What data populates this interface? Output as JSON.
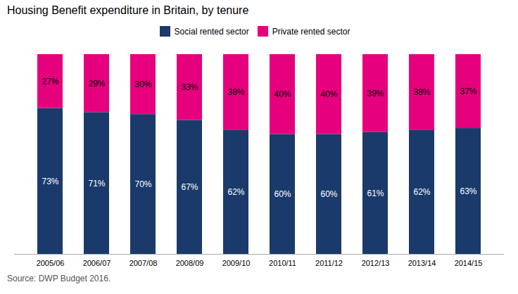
{
  "chart_data": {
    "type": "bar",
    "title": "Housing Benefit expenditure in Britain, by tenure",
    "caption": "Source: DWP Budget 2016.",
    "categories": [
      "2005/06",
      "2006/07",
      "2007/08",
      "2008/09",
      "2009/10",
      "2010/11",
      "2011/12",
      "2012/13",
      "2013/14",
      "2014/15"
    ],
    "series": [
      {
        "name": "Social rented sector",
        "color": "#1a3a6b",
        "values": [
          73,
          71,
          70,
          67,
          62,
          60,
          60,
          61,
          62,
          63
        ],
        "value_labels": [
          "73%",
          "71%",
          "70%",
          "67%",
          "62%",
          "60%",
          "60%",
          "61%",
          "62%",
          "63%"
        ]
      },
      {
        "name": "Private rented sector",
        "color": "#e6007e",
        "values": [
          27,
          29,
          30,
          33,
          38,
          40,
          40,
          39,
          38,
          37
        ],
        "value_labels": [
          "27%",
          "29%",
          "30%",
          "33%",
          "38%",
          "40%",
          "40%",
          "39%",
          "38%",
          "37%"
        ]
      }
    ],
    "stacked": true,
    "data_labels": true,
    "ylim": [
      0,
      100
    ],
    "yticks": [],
    "tick_labels": "x",
    "grid": false,
    "legend": "top"
  }
}
